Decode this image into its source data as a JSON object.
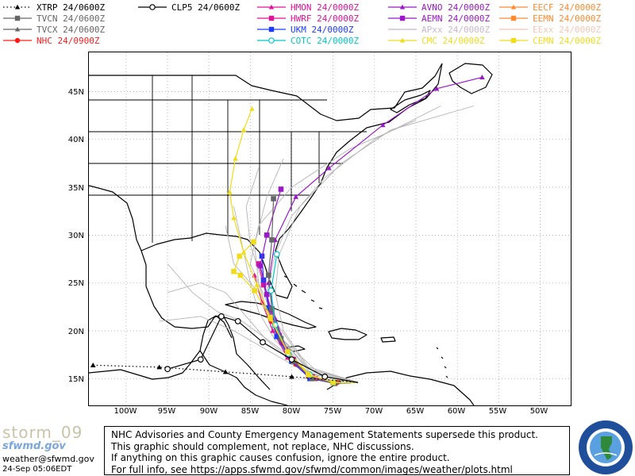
{
  "legend": [
    {
      "label": "XTRP 24/0600Z",
      "color": "#000000",
      "marker": "triangle",
      "dashed": true
    },
    {
      "label": "CLP5 24/0600Z",
      "color": "#000000",
      "marker": "circle-open",
      "dashed": false
    },
    {
      "label": "HMON 24/0000Z",
      "color": "#e0129a",
      "marker": "triangle",
      "dashed": false
    },
    {
      "label": "AVNO 24/0000Z",
      "color": "#9a18c8",
      "marker": "triangle",
      "dashed": false
    },
    {
      "label": "EECF 24/0000Z",
      "color": "#ff8a30",
      "marker": "triangle",
      "dashed": false
    },
    {
      "label": "TVCN 24/0600Z",
      "color": "#666666",
      "marker": "square",
      "dashed": false
    },
    {
      "label": "HWRF 24/0000Z",
      "color": "#e0129a",
      "marker": "square",
      "dashed": false
    },
    {
      "label": "AEMN 24/0000Z",
      "color": "#9a18c8",
      "marker": "square",
      "dashed": false
    },
    {
      "label": "EEMN 24/0000Z",
      "color": "#ff8a30",
      "marker": "square",
      "dashed": false
    },
    {
      "label": "TVCX 24/0600Z",
      "color": "#666666",
      "marker": "triangle",
      "dashed": false
    },
    {
      "label": "UKM 24/0000Z",
      "color": "#1a3cff",
      "marker": "square",
      "dashed": false
    },
    {
      "label": "APxx 24/0000Z",
      "color": "#c8b8c8",
      "marker": "none",
      "dashed": false
    },
    {
      "label": "EExx 24/0000Z",
      "color": "#f4c8b8",
      "marker": "none",
      "dashed": false
    },
    {
      "label": "NHC 24/0900Z",
      "color": "#ff1a1a",
      "marker": "circle",
      "dashed": false
    },
    {
      "label": "COTC 24/0000Z",
      "color": "#00c8c8",
      "marker": "circle-open",
      "dashed": false
    },
    {
      "label": "CMC 24/0000Z",
      "color": "#f0dc1a",
      "marker": "triangle",
      "dashed": false
    },
    {
      "label": "CEMN 24/0000Z",
      "color": "#f0dc1a",
      "marker": "square",
      "dashed": false
    }
  ],
  "axes": {
    "lat_labels": [
      "45N",
      "40N",
      "35N",
      "30N",
      "25N",
      "20N",
      "15N"
    ],
    "lon_labels": [
      "100W",
      "95W",
      "90W",
      "85W",
      "80W",
      "75W",
      "70W",
      "65W",
      "60W",
      "55W",
      "50W"
    ]
  },
  "disclaimer": [
    "NHC Advisories and County Emergency Management Statements supersede this product.",
    "This graphic should complement, not replace, NHC discussions.",
    "If anything on this graphic causes confusion, ignore the entire product.",
    "For full info, see   https://apps.sfwmd.gov/sfwmd/common/images/weather/plots.html"
  ],
  "brand": {
    "storm": "storm_09",
    "site": "sfwmd.gov",
    "email": "weather@sfwmd.gov",
    "timestamp": "24-Sep 05:06EDT",
    "logo_text": "SOUTH FLORIDA WATER MANAGEMENT DISTRICT"
  },
  "tracks": [
    {
      "model": "NHC",
      "color": "#ff1a1a",
      "marker": "circle",
      "points": [
        [
          -72,
          14.6
        ],
        [
          -74.5,
          14.6
        ],
        [
          -77,
          15.0
        ],
        [
          -79.5,
          16.5
        ],
        [
          -81.2,
          18.7
        ],
        [
          -82.5,
          21.0
        ],
        [
          -83.0,
          23.8
        ]
      ]
    },
    {
      "model": "HWRF",
      "color": "#e0129a",
      "marker": "square",
      "points": [
        [
          -72,
          14.6
        ],
        [
          -75,
          14.6
        ],
        [
          -77.5,
          15.2
        ],
        [
          -79.8,
          17.0
        ],
        [
          -81.5,
          19.5
        ],
        [
          -82.6,
          22.2
        ],
        [
          -83.4,
          24.8
        ],
        [
          -84.0,
          27.0
        ]
      ]
    },
    {
      "model": "HMON",
      "color": "#e0129a",
      "marker": "triangle",
      "points": [
        [
          -72,
          14.6
        ],
        [
          -75,
          14.5
        ],
        [
          -78,
          15.3
        ],
        [
          -80.5,
          17.2
        ],
        [
          -82.3,
          20.0
        ],
        [
          -83.6,
          23.0
        ],
        [
          -84.5,
          25.8
        ]
      ]
    },
    {
      "model": "UKM",
      "color": "#1a3cff",
      "marker": "square",
      "points": [
        [
          -72,
          14.6
        ],
        [
          -74.8,
          14.5
        ],
        [
          -77.8,
          15.0
        ],
        [
          -80.0,
          16.8
        ],
        [
          -81.8,
          19.4
        ],
        [
          -82.8,
          22.4
        ],
        [
          -83.4,
          25.3
        ],
        [
          -83.6,
          27.8
        ]
      ]
    },
    {
      "model": "AEMN",
      "color": "#9a18c8",
      "marker": "square",
      "points": [
        [
          -72,
          14.6
        ],
        [
          -75,
          14.6
        ],
        [
          -78,
          15.3
        ],
        [
          -80.5,
          17.5
        ],
        [
          -82.0,
          20.6
        ],
        [
          -83.0,
          23.8
        ],
        [
          -83.8,
          26.8
        ],
        [
          -83.0,
          30.0
        ],
        [
          -81.3,
          34.8
        ]
      ]
    },
    {
      "model": "AVNO",
      "color": "#9a18c8",
      "marker": "triangle",
      "points": [
        [
          -72,
          14.6
        ],
        [
          -75,
          14.6
        ],
        [
          -78,
          15.4
        ],
        [
          -80.6,
          18.0
        ],
        [
          -82.0,
          21.3
        ],
        [
          -82.8,
          25.0
        ],
        [
          -82.0,
          29.5
        ],
        [
          -79.5,
          34.0
        ],
        [
          -75.5,
          37.0
        ],
        [
          -69.0,
          41.5
        ],
        [
          -62.5,
          45.3
        ],
        [
          -57.0,
          46.5
        ]
      ]
    },
    {
      "model": "TVCN",
      "color": "#666666",
      "marker": "square",
      "points": [
        [
          -72,
          14.6
        ],
        [
          -74.8,
          14.5
        ],
        [
          -77.5,
          15.0
        ],
        [
          -79.8,
          16.8
        ],
        [
          -81.3,
          19.2
        ],
        [
          -82.4,
          22.3
        ],
        [
          -82.8,
          25.8
        ],
        [
          -82.4,
          29.5
        ],
        [
          -82.2,
          33.8
        ]
      ]
    },
    {
      "model": "COTC",
      "color": "#00c8c8",
      "marker": "circle-open",
      "points": [
        [
          -72,
          14.6
        ],
        [
          -75,
          14.6
        ],
        [
          -77.8,
          15.4
        ],
        [
          -80.4,
          17.6
        ],
        [
          -82.0,
          20.6
        ],
        [
          -82.5,
          24.2
        ],
        [
          -81.8,
          28.0
        ]
      ]
    },
    {
      "model": "CMC",
      "color": "#f0dc1a",
      "marker": "triangle",
      "points": [
        [
          -72,
          14.6
        ],
        [
          -75,
          14.6
        ],
        [
          -77.8,
          15.4
        ],
        [
          -80.5,
          17.8
        ],
        [
          -82.5,
          21.2
        ],
        [
          -84.2,
          24.8
        ],
        [
          -85.8,
          28.2
        ],
        [
          -87.0,
          31.8
        ],
        [
          -87.5,
          34.5
        ],
        [
          -86.8,
          38.0
        ],
        [
          -85.8,
          41.0
        ],
        [
          -84.8,
          43.2
        ]
      ]
    },
    {
      "model": "CEMN",
      "color": "#f0dc1a",
      "marker": "square",
      "points": [
        [
          -72,
          14.6
        ],
        [
          -75,
          14.6
        ],
        [
          -78,
          15.4
        ],
        [
          -80.5,
          17.8
        ],
        [
          -82.6,
          21.4
        ],
        [
          -84.5,
          24.2
        ],
        [
          -86.2,
          25.8
        ],
        [
          -87.0,
          26.2
        ],
        [
          -86.3,
          27.8
        ],
        [
          -84.6,
          29.3
        ]
      ]
    },
    {
      "model": "XTRP",
      "color": "#000000",
      "marker": "triangle",
      "dashed": true,
      "points": [
        [
          -72,
          14.6
        ],
        [
          -80,
          15.2
        ],
        [
          -88,
          15.7
        ],
        [
          -96,
          16.2
        ],
        [
          -104,
          16.4
        ]
      ]
    },
    {
      "model": "CLP5",
      "color": "#000000",
      "marker": "circle-open",
      "points": [
        [
          -72,
          14.6
        ],
        [
          -76,
          15.2
        ],
        [
          -80,
          17.0
        ],
        [
          -83.5,
          18.8
        ],
        [
          -86.5,
          21.0
        ],
        [
          -88.5,
          21.5
        ],
        [
          -91,
          17.0
        ],
        [
          -95,
          16.0
        ]
      ]
    }
  ],
  "grey_members": [
    [
      [
        -72,
        14.6
      ],
      [
        -78,
        15.6
      ],
      [
        -82,
        19
      ],
      [
        -84,
        22
      ],
      [
        -85,
        25
      ],
      [
        -86,
        29
      ],
      [
        -87,
        33
      ]
    ],
    [
      [
        -72,
        14.6
      ],
      [
        -78,
        16
      ],
      [
        -82,
        20
      ],
      [
        -83,
        24
      ],
      [
        -82,
        28
      ],
      [
        -80,
        32
      ],
      [
        -76,
        36
      ],
      [
        -70,
        40
      ],
      [
        -62,
        43.5
      ]
    ],
    [
      [
        -72,
        14.6
      ],
      [
        -78,
        15.5
      ],
      [
        -83,
        19
      ],
      [
        -86,
        22
      ],
      [
        -88,
        24
      ],
      [
        -91,
        25
      ],
      [
        -95,
        24
      ]
    ],
    [
      [
        -72,
        14.6
      ],
      [
        -77,
        15.8
      ],
      [
        -81,
        19
      ],
      [
        -83,
        23
      ],
      [
        -85,
        27
      ],
      [
        -84,
        31
      ],
      [
        -80,
        35
      ],
      [
        -73,
        39
      ],
      [
        -65,
        42
      ]
    ],
    [
      [
        -72,
        14.6
      ],
      [
        -78,
        16
      ],
      [
        -82,
        21
      ],
      [
        -83.5,
        25
      ],
      [
        -85,
        29
      ],
      [
        -85.5,
        33
      ],
      [
        -84,
        37
      ]
    ],
    [
      [
        -72,
        14.6
      ],
      [
        -77,
        15
      ],
      [
        -82,
        18.5
      ],
      [
        -86,
        21
      ],
      [
        -89,
        22
      ],
      [
        -92,
        24
      ],
      [
        -95,
        27
      ]
    ],
    [
      [
        -72,
        14.6
      ],
      [
        -78,
        16.2
      ],
      [
        -81,
        20
      ],
      [
        -82,
        24
      ],
      [
        -81.5,
        28
      ],
      [
        -79,
        33
      ],
      [
        -74,
        37.5
      ],
      [
        -68,
        41
      ],
      [
        -58,
        43.5
      ]
    ],
    [
      [
        -72,
        14.6
      ],
      [
        -78,
        15.8
      ],
      [
        -82,
        20
      ],
      [
        -84,
        24
      ],
      [
        -87,
        27
      ],
      [
        -88,
        31
      ]
    ],
    [
      [
        -72,
        14.6
      ],
      [
        -79,
        16.5
      ],
      [
        -82.5,
        20.5
      ],
      [
        -84,
        25
      ],
      [
        -84.5,
        29
      ],
      [
        -83,
        34
      ],
      [
        -81,
        38
      ]
    ],
    [
      [
        -72,
        14.6
      ],
      [
        -78,
        15.5
      ],
      [
        -83,
        18
      ],
      [
        -87,
        20
      ],
      [
        -91,
        21.5
      ],
      [
        -96,
        21
      ]
    ]
  ]
}
